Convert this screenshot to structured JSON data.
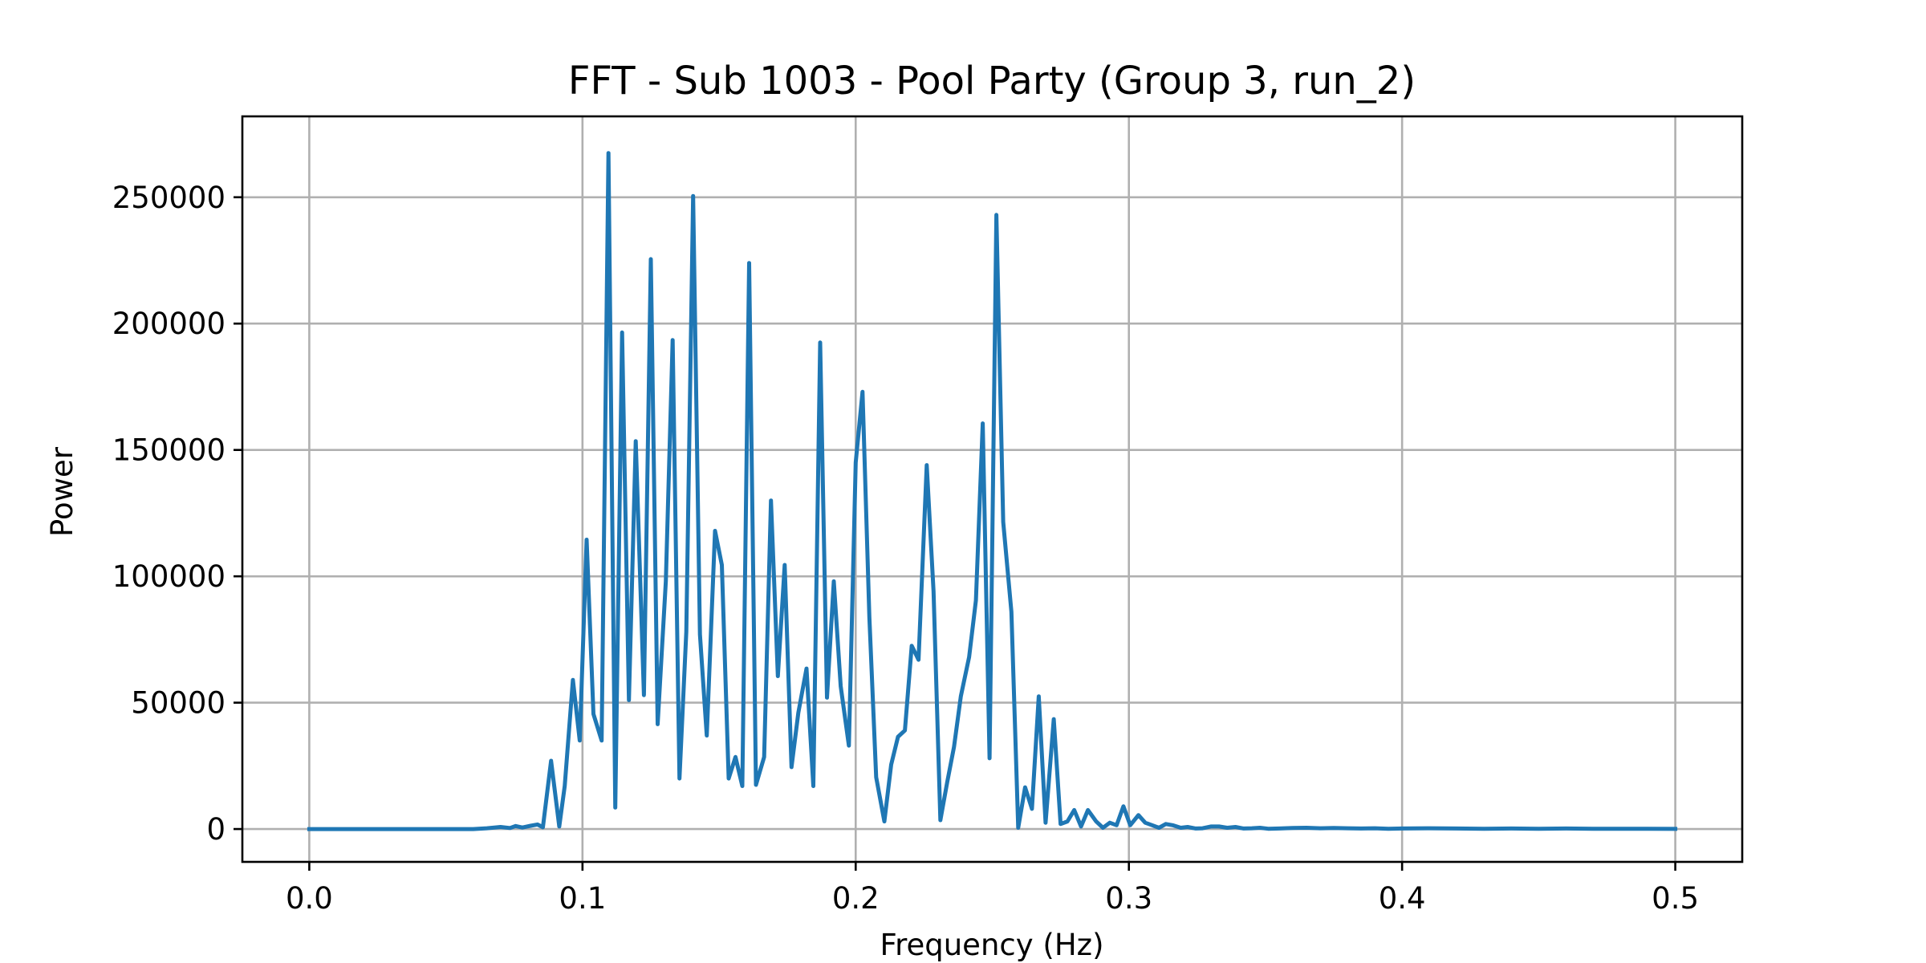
{
  "chart_data": {
    "type": "line",
    "title": "FFT - Sub 1003 - Pool Party (Group 3, run_2)",
    "xlabel": "Frequency (Hz)",
    "ylabel": "Power",
    "xlim": [
      -0.0245,
      0.5245
    ],
    "ylim": [
      -13000,
      282000
    ],
    "grid": true,
    "legend": "none",
    "color": "#1f77b4",
    "x_ticks": [
      {
        "value": 0.0,
        "label": "0.0"
      },
      {
        "value": 0.1,
        "label": "0.1"
      },
      {
        "value": 0.2,
        "label": "0.2"
      },
      {
        "value": 0.3,
        "label": "0.3"
      },
      {
        "value": 0.4,
        "label": "0.4"
      },
      {
        "value": 0.5,
        "label": "0.5"
      }
    ],
    "y_ticks": [
      {
        "value": 0,
        "label": "0"
      },
      {
        "value": 50000,
        "label": "50000"
      },
      {
        "value": 100000,
        "label": "100000"
      },
      {
        "value": 150000,
        "label": "150000"
      },
      {
        "value": 200000,
        "label": "200000"
      },
      {
        "value": 250000,
        "label": "250000"
      }
    ],
    "series": [
      {
        "points": [
          [
            0.0,
            0
          ],
          [
            0.02,
            0
          ],
          [
            0.04,
            0
          ],
          [
            0.06,
            0
          ],
          [
            0.065,
            300
          ],
          [
            0.07,
            800
          ],
          [
            0.0735,
            400
          ],
          [
            0.0755,
            1200
          ],
          [
            0.078,
            600
          ],
          [
            0.081,
            1300
          ],
          [
            0.0835,
            1800
          ],
          [
            0.0855,
            700
          ],
          [
            0.0885,
            27000
          ],
          [
            0.0915,
            1000
          ],
          [
            0.0935,
            17000
          ],
          [
            0.0965,
            59000
          ],
          [
            0.099,
            35000
          ],
          [
            0.1015,
            114500
          ],
          [
            0.104,
            45500
          ],
          [
            0.107,
            35000
          ],
          [
            0.1095,
            267500
          ],
          [
            0.112,
            8500
          ],
          [
            0.1145,
            196500
          ],
          [
            0.117,
            51000
          ],
          [
            0.1195,
            153500
          ],
          [
            0.1225,
            53000
          ],
          [
            0.125,
            225500
          ],
          [
            0.1275,
            41500
          ],
          [
            0.1305,
            98000
          ],
          [
            0.133,
            193500
          ],
          [
            0.1355,
            20000
          ],
          [
            0.138,
            78000
          ],
          [
            0.1405,
            250500
          ],
          [
            0.143,
            77000
          ],
          [
            0.1455,
            37000
          ],
          [
            0.1485,
            118000
          ],
          [
            0.151,
            104500
          ],
          [
            0.1535,
            20000
          ],
          [
            0.156,
            28500
          ],
          [
            0.1585,
            17000
          ],
          [
            0.161,
            224000
          ],
          [
            0.1635,
            17500
          ],
          [
            0.1665,
            28500
          ],
          [
            0.169,
            130000
          ],
          [
            0.1715,
            60500
          ],
          [
            0.174,
            104500
          ],
          [
            0.1765,
            24500
          ],
          [
            0.179,
            46000
          ],
          [
            0.182,
            63500
          ],
          [
            0.1845,
            17000
          ],
          [
            0.187,
            192500
          ],
          [
            0.1895,
            52000
          ],
          [
            0.192,
            98000
          ],
          [
            0.1945,
            56500
          ],
          [
            0.1975,
            33000
          ],
          [
            0.2,
            145000
          ],
          [
            0.2025,
            173000
          ],
          [
            0.205,
            84000
          ],
          [
            0.2075,
            20500
          ],
          [
            0.2105,
            3000
          ],
          [
            0.213,
            25500
          ],
          [
            0.2155,
            36500
          ],
          [
            0.218,
            39000
          ],
          [
            0.2205,
            72500
          ],
          [
            0.223,
            67000
          ],
          [
            0.226,
            144000
          ],
          [
            0.2285,
            94000
          ],
          [
            0.231,
            3500
          ],
          [
            0.2335,
            18500
          ],
          [
            0.236,
            32500
          ],
          [
            0.2385,
            52500
          ],
          [
            0.2415,
            68000
          ],
          [
            0.244,
            90500
          ],
          [
            0.2465,
            160500
          ],
          [
            0.249,
            28000
          ],
          [
            0.2515,
            243000
          ],
          [
            0.254,
            121500
          ],
          [
            0.257,
            86000
          ],
          [
            0.2595,
            500
          ],
          [
            0.262,
            16500
          ],
          [
            0.2645,
            8000
          ],
          [
            0.267,
            52500
          ],
          [
            0.2695,
            2500
          ],
          [
            0.2725,
            43500
          ],
          [
            0.275,
            2000
          ],
          [
            0.2775,
            3000
          ],
          [
            0.28,
            7500
          ],
          [
            0.2825,
            1000
          ],
          [
            0.285,
            7500
          ],
          [
            0.288,
            3000
          ],
          [
            0.2905,
            500
          ],
          [
            0.293,
            2500
          ],
          [
            0.2955,
            1500
          ],
          [
            0.298,
            9000
          ],
          [
            0.3005,
            1500
          ],
          [
            0.3035,
            5500
          ],
          [
            0.306,
            2500
          ],
          [
            0.3085,
            1500
          ],
          [
            0.311,
            500
          ],
          [
            0.3135,
            2000
          ],
          [
            0.316,
            1500
          ],
          [
            0.319,
            500
          ],
          [
            0.3215,
            800
          ],
          [
            0.3245,
            200
          ],
          [
            0.327,
            300
          ],
          [
            0.33,
            1000
          ],
          [
            0.333,
            1000
          ],
          [
            0.336,
            500
          ],
          [
            0.339,
            800
          ],
          [
            0.342,
            200
          ],
          [
            0.345,
            300
          ],
          [
            0.348,
            500
          ],
          [
            0.351,
            100
          ],
          [
            0.355,
            200
          ],
          [
            0.36,
            400
          ],
          [
            0.365,
            500
          ],
          [
            0.37,
            300
          ],
          [
            0.375,
            400
          ],
          [
            0.38,
            300
          ],
          [
            0.385,
            200
          ],
          [
            0.39,
            300
          ],
          [
            0.395,
            100
          ],
          [
            0.4,
            200
          ],
          [
            0.41,
            300
          ],
          [
            0.42,
            200
          ],
          [
            0.43,
            100
          ],
          [
            0.44,
            200
          ],
          [
            0.45,
            100
          ],
          [
            0.46,
            200
          ],
          [
            0.47,
            100
          ],
          [
            0.48,
            100
          ],
          [
            0.49,
            100
          ],
          [
            0.5,
            50
          ]
        ]
      }
    ]
  }
}
